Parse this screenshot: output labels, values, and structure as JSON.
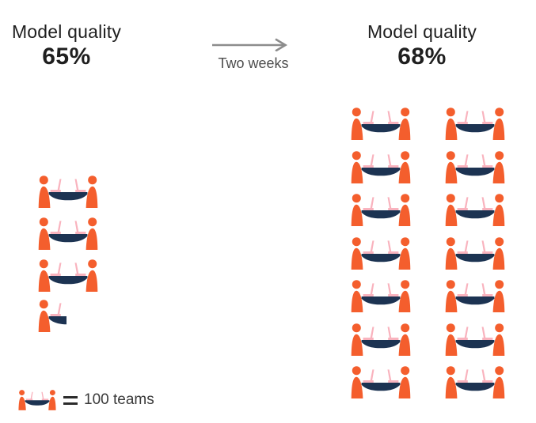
{
  "chart_data": {
    "type": "pictograph",
    "title": "",
    "unit_label": "100 teams",
    "unit_value": 100,
    "icon_meaning": "team-at-table-with-two-laptops",
    "series": [
      {
        "name": "before",
        "title": "Model quality",
        "value": "65%",
        "full_icons": 3,
        "partial_icons": 1,
        "approx_teams": 350
      },
      {
        "name": "after",
        "title": "Model quality",
        "value": "68%",
        "full_icons": 14,
        "partial_icons": 0,
        "approx_teams": 1400
      }
    ],
    "transition_label": "Two weeks",
    "legend_position": "bottom-left",
    "layout": "left single column vs right two-column grid of 7 rows"
  },
  "left_panel": {
    "title": "Model quality",
    "value": "65%"
  },
  "right_panel": {
    "title": "Model quality",
    "value": "68%"
  },
  "transition": {
    "label": "Two weeks"
  },
  "legend": {
    "label": "100 teams"
  },
  "colors": {
    "person_orange": "#F45E2D",
    "table_navy": "#1C3352",
    "laptop_pink": "#F9B3BE",
    "arrow_gray": "#8C8C8C",
    "title_text": "#1F1F1F",
    "transition_text": "#4D4D4D",
    "legend_text": "#3A3A3A",
    "background": "#FFFFFF"
  }
}
